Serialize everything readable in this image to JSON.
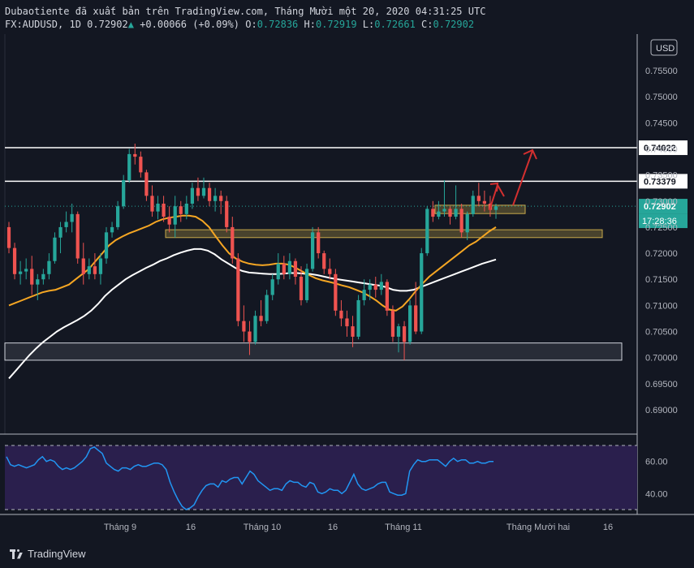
{
  "header": {
    "line1": "Dubaotiente đã xuất bản trên TradingView.com, Tháng Mười một 20, 2020 04:31:25 UTC",
    "symbol": "FX:AUDUSD, 1D 0.72902",
    "change_arrow": "▲",
    "change": "+0.00066 (+0.09%)",
    "o_label": "O:",
    "o": "0.72836",
    "h_label": "H:",
    "h": "0.72919",
    "l_label": "L:",
    "l": "0.72661",
    "c_label": "C:",
    "c": "0.72902"
  },
  "footer": {
    "brand": "TradingView"
  },
  "colors": {
    "background": "#131722",
    "up": "#26a69a",
    "down": "#ef5350",
    "ma_fast": "#f5a623",
    "ma_slow": "#ffffff",
    "rsi": "#2196f3",
    "rsi_band": "#2a1f4d",
    "arrow": "#d32f2f",
    "zone_fill": "#c8a94a"
  },
  "chart_data": {
    "type": "candlestick",
    "symbol": "FX:AUDUSD",
    "timeframe": "1D",
    "currency_label": "USD",
    "y_ticks": [
      "0.75500",
      "0.75000",
      "0.74500",
      "0.74000",
      "0.73500",
      "0.73000",
      "0.72500",
      "0.72000",
      "0.71500",
      "0.71000",
      "0.70500",
      "0.70000",
      "0.69500",
      "0.69000"
    ],
    "ylim": [
      0.688,
      0.7565
    ],
    "x_ticks": [
      "Tháng 9",
      "16",
      "Tháng 10",
      "16",
      "Tháng 11",
      "Tháng Mười hai",
      "16"
    ],
    "horizontal_levels": [
      {
        "value": 0.74022,
        "label": "0.74022"
      },
      {
        "value": 0.73379,
        "label": "0.73379"
      }
    ],
    "price_labels": [
      {
        "label": "0.72902",
        "value": 0.72902
      },
      {
        "label": "17:28:36",
        "value": 0.7265
      }
    ],
    "zones": [
      {
        "name": "support-zone",
        "from": 0.6995,
        "to": 0.7028
      },
      {
        "name": "mid-zone",
        "from": 0.723,
        "to": 0.7245
      },
      {
        "name": "upper-zone",
        "from": 0.7276,
        "to": 0.7292
      }
    ],
    "candles": [
      [
        0.725,
        0.726,
        0.72,
        0.721
      ],
      [
        0.721,
        0.722,
        0.715,
        0.716
      ],
      [
        0.716,
        0.7185,
        0.714,
        0.7165
      ],
      [
        0.7165,
        0.719,
        0.715,
        0.717
      ],
      [
        0.717,
        0.7195,
        0.712,
        0.714
      ],
      [
        0.714,
        0.716,
        0.711,
        0.715
      ],
      [
        0.715,
        0.717,
        0.714,
        0.716
      ],
      [
        0.716,
        0.72,
        0.715,
        0.7185
      ],
      [
        0.7185,
        0.724,
        0.718,
        0.723
      ],
      [
        0.723,
        0.726,
        0.72,
        0.725
      ],
      [
        0.725,
        0.728,
        0.724,
        0.726
      ],
      [
        0.726,
        0.7295,
        0.724,
        0.7275
      ],
      [
        0.7275,
        0.728,
        0.718,
        0.719
      ],
      [
        0.719,
        0.722,
        0.714,
        0.716
      ],
      [
        0.716,
        0.719,
        0.715,
        0.7175
      ],
      [
        0.7175,
        0.72,
        0.715,
        0.716
      ],
      [
        0.716,
        0.72,
        0.714,
        0.719
      ],
      [
        0.719,
        0.725,
        0.718,
        0.724
      ],
      [
        0.724,
        0.726,
        0.723,
        0.725
      ],
      [
        0.725,
        0.73,
        0.7245,
        0.729
      ],
      [
        0.729,
        0.735,
        0.7285,
        0.734
      ],
      [
        0.734,
        0.74,
        0.7335,
        0.739
      ],
      [
        0.739,
        0.741,
        0.737,
        0.7385
      ],
      [
        0.7385,
        0.7395,
        0.7345,
        0.7355
      ],
      [
        0.7355,
        0.736,
        0.73,
        0.731
      ],
      [
        0.731,
        0.733,
        0.727,
        0.728
      ],
      [
        0.728,
        0.731,
        0.7265,
        0.7295
      ],
      [
        0.7295,
        0.731,
        0.726,
        0.727
      ],
      [
        0.727,
        0.729,
        0.724,
        0.7255
      ],
      [
        0.7255,
        0.731,
        0.723,
        0.729
      ],
      [
        0.729,
        0.73,
        0.726,
        0.7275
      ],
      [
        0.7275,
        0.731,
        0.7265,
        0.7295
      ],
      [
        0.7295,
        0.7335,
        0.7285,
        0.7325
      ],
      [
        0.7325,
        0.7345,
        0.73,
        0.731
      ],
      [
        0.731,
        0.7345,
        0.7305,
        0.7325
      ],
      [
        0.7325,
        0.7335,
        0.729,
        0.73
      ],
      [
        0.73,
        0.7325,
        0.728,
        0.731
      ],
      [
        0.731,
        0.732,
        0.7275,
        0.73
      ],
      [
        0.73,
        0.731,
        0.724,
        0.725
      ],
      [
        0.725,
        0.727,
        0.718,
        0.719
      ],
      [
        0.719,
        0.72,
        0.706,
        0.707
      ],
      [
        0.707,
        0.71,
        0.703,
        0.705
      ],
      [
        0.705,
        0.707,
        0.7005,
        0.703
      ],
      [
        0.703,
        0.709,
        0.7025,
        0.708
      ],
      [
        0.708,
        0.711,
        0.706,
        0.707
      ],
      [
        0.707,
        0.713,
        0.7065,
        0.712
      ],
      [
        0.712,
        0.716,
        0.711,
        0.715
      ],
      [
        0.715,
        0.72,
        0.714,
        0.718
      ],
      [
        0.718,
        0.7195,
        0.715,
        0.716
      ],
      [
        0.716,
        0.72,
        0.715,
        0.7185
      ],
      [
        0.7185,
        0.719,
        0.714,
        0.7155
      ],
      [
        0.7155,
        0.7175,
        0.71,
        0.711
      ],
      [
        0.711,
        0.718,
        0.7105,
        0.717
      ],
      [
        0.717,
        0.725,
        0.7165,
        0.724
      ],
      [
        0.724,
        0.725,
        0.719,
        0.72
      ],
      [
        0.72,
        0.7205,
        0.716,
        0.717
      ],
      [
        0.717,
        0.719,
        0.715,
        0.716
      ],
      [
        0.716,
        0.717,
        0.708,
        0.709
      ],
      [
        0.709,
        0.711,
        0.706,
        0.7075
      ],
      [
        0.7075,
        0.709,
        0.704,
        0.706
      ],
      [
        0.706,
        0.708,
        0.702,
        0.704
      ],
      [
        0.704,
        0.712,
        0.7035,
        0.711
      ],
      [
        0.711,
        0.715,
        0.71,
        0.713
      ],
      [
        0.713,
        0.715,
        0.711,
        0.714
      ],
      [
        0.714,
        0.7155,
        0.7115,
        0.713
      ],
      [
        0.713,
        0.716,
        0.712,
        0.7145
      ],
      [
        0.7145,
        0.715,
        0.708,
        0.709
      ],
      [
        0.709,
        0.71,
        0.703,
        0.704
      ],
      [
        0.704,
        0.7065,
        0.701,
        0.706
      ],
      [
        0.706,
        0.707,
        0.6995,
        0.703
      ],
      [
        0.703,
        0.711,
        0.7025,
        0.71
      ],
      [
        0.71,
        0.7145,
        0.7045,
        0.705
      ],
      [
        0.705,
        0.721,
        0.7045,
        0.72
      ],
      [
        0.72,
        0.729,
        0.7195,
        0.7285
      ],
      [
        0.7285,
        0.73,
        0.726,
        0.727
      ],
      [
        0.727,
        0.73,
        0.7265,
        0.728
      ],
      [
        0.728,
        0.734,
        0.727,
        0.7285
      ],
      [
        0.7285,
        0.729,
        0.7255,
        0.727
      ],
      [
        0.727,
        0.733,
        0.7265,
        0.7285
      ],
      [
        0.7285,
        0.7295,
        0.723,
        0.724
      ],
      [
        0.724,
        0.728,
        0.7225,
        0.7275
      ],
      [
        0.7275,
        0.732,
        0.727,
        0.731
      ],
      [
        0.731,
        0.7335,
        0.729,
        0.73
      ],
      [
        0.73,
        0.732,
        0.728,
        0.7295
      ],
      [
        0.7295,
        0.731,
        0.727,
        0.7283
      ],
      [
        0.7283,
        0.7295,
        0.7266,
        0.729
      ]
    ],
    "ma_fast": [
      0.71,
      0.7105,
      0.711,
      0.7115,
      0.712,
      0.7125,
      0.7128,
      0.713,
      0.7135,
      0.714,
      0.715,
      0.716,
      0.717,
      0.7185,
      0.72,
      0.7215,
      0.7225,
      0.7232,
      0.7238,
      0.7243,
      0.7248,
      0.7253,
      0.726,
      0.7265,
      0.7268,
      0.727,
      0.7272,
      0.7272,
      0.727,
      0.7262,
      0.725,
      0.7232,
      0.7215,
      0.72,
      0.719,
      0.7184,
      0.718,
      0.7178,
      0.7177,
      0.7178,
      0.718,
      0.718,
      0.7178,
      0.7172,
      0.7165,
      0.7158,
      0.7152,
      0.7148,
      0.7145,
      0.7142,
      0.7138,
      0.7135,
      0.713,
      0.7125,
      0.7118,
      0.711,
      0.71,
      0.7092,
      0.709,
      0.7098,
      0.7112,
      0.7128,
      0.7142,
      0.7155,
      0.7165,
      0.7175,
      0.7185,
      0.7195,
      0.7205,
      0.7215,
      0.7222,
      0.7232,
      0.7242,
      0.725
    ],
    "ma_fast_start": 0,
    "ma_slow": [
      0.696,
      0.6975,
      0.699,
      0.7005,
      0.7018,
      0.703,
      0.704,
      0.705,
      0.7058,
      0.7065,
      0.7072,
      0.708,
      0.709,
      0.7103,
      0.7118,
      0.713,
      0.714,
      0.715,
      0.7158,
      0.7165,
      0.7172,
      0.7178,
      0.7185,
      0.719,
      0.7196,
      0.7201,
      0.7205,
      0.7208,
      0.7208,
      0.7205,
      0.7198,
      0.7188,
      0.718,
      0.7172,
      0.7166,
      0.7163,
      0.7162,
      0.7161,
      0.716,
      0.716,
      0.7161,
      0.7162,
      0.7162,
      0.7161,
      0.716,
      0.7158,
      0.7155,
      0.7152,
      0.715,
      0.7148,
      0.7146,
      0.7144,
      0.7142,
      0.714,
      0.7138,
      0.7135,
      0.713,
      0.7128,
      0.7128,
      0.713,
      0.7135,
      0.714,
      0.7145,
      0.715,
      0.7155,
      0.716,
      0.7165,
      0.717,
      0.7175,
      0.718,
      0.7184,
      0.7188
    ],
    "ma_slow_start": 0,
    "rsi": {
      "upper": 70,
      "lower": 30,
      "ylim": [
        29,
        72
      ],
      "ticks": [
        "60.00",
        "40.00"
      ],
      "values": [
        63,
        58,
        57,
        58,
        57,
        56,
        57,
        58,
        61,
        63,
        60,
        61,
        60,
        57,
        55,
        56,
        55,
        56,
        58,
        60,
        63,
        68,
        69,
        67,
        65,
        59,
        57,
        55,
        54,
        56,
        56,
        55,
        57,
        58,
        57,
        57,
        58,
        59,
        59,
        58,
        55,
        47,
        41,
        36,
        32,
        30,
        31,
        33,
        38,
        42,
        45,
        46,
        46,
        44,
        48,
        47,
        49,
        50,
        50,
        46,
        50,
        54,
        52,
        48,
        46,
        44,
        42,
        43,
        43,
        42,
        46,
        48,
        47,
        47,
        45,
        44,
        47,
        46,
        41,
        40,
        41,
        43,
        42,
        42,
        40,
        42,
        47,
        52,
        46,
        43,
        42,
        43,
        44,
        46,
        47,
        47,
        41,
        40,
        39,
        39,
        40,
        54,
        58,
        61,
        60,
        60,
        61,
        61,
        61,
        59,
        57,
        60,
        62,
        60,
        61,
        61,
        59,
        59,
        60,
        59,
        59,
        60,
        60
      ]
    }
  }
}
